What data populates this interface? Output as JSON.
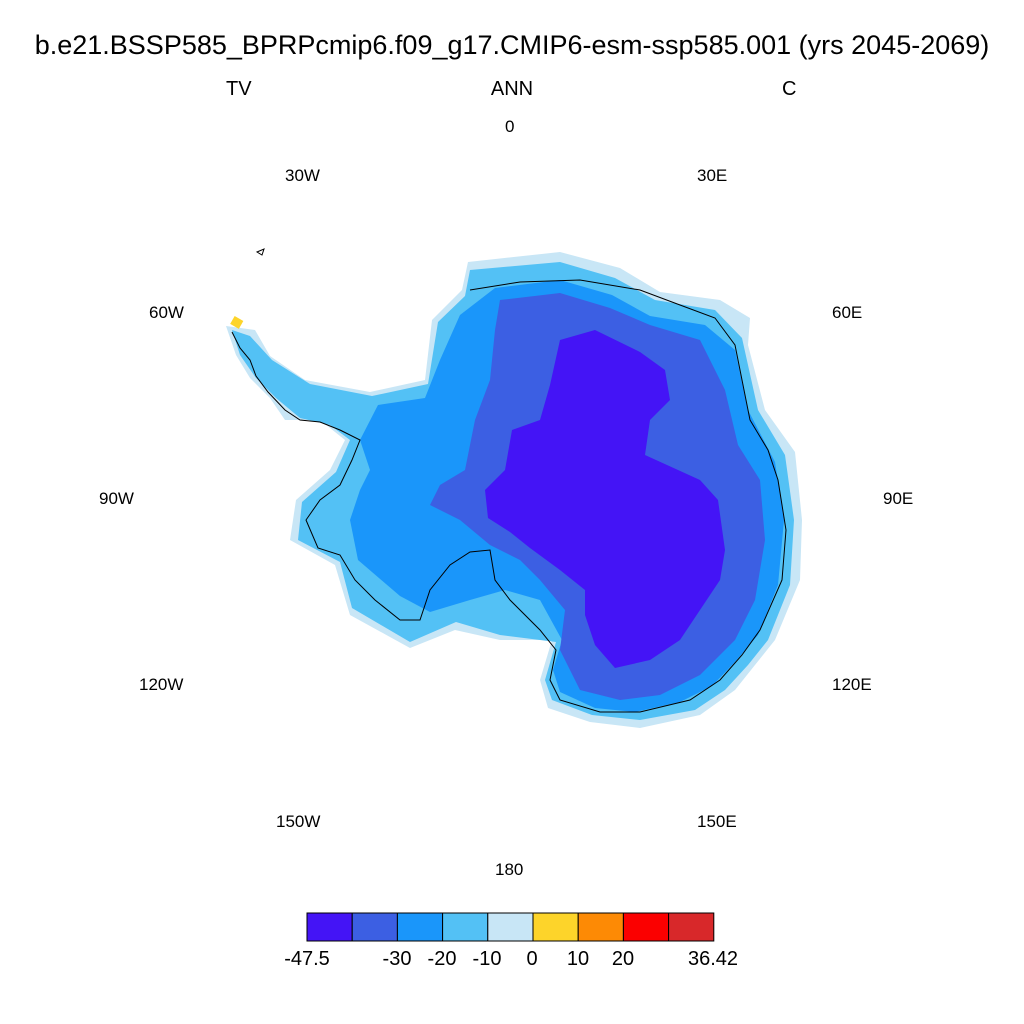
{
  "title": "b.e21.BSSP585_BPRPcmip6.f09_g17.CMIP6-esm-ssp585.001 (yrs 2045-2069)",
  "subtitle": {
    "left": "TV",
    "center": "ANN",
    "right": "C"
  },
  "longitude_labels": {
    "lon_0": "0",
    "lon_30e": "30E",
    "lon_60e": "60E",
    "lon_90e": "90E",
    "lon_120e": "120E",
    "lon_150e": "150E",
    "lon_180": "180",
    "lon_150w": "150W",
    "lon_120w": "120W",
    "lon_90w": "90W",
    "lon_60w": "60W",
    "lon_30w": "30W"
  },
  "colorbar": {
    "colors": [
      "#4414f6",
      "#3c5fe3",
      "#1a96fa",
      "#53c1f5",
      "#c8e6f6",
      "#fdd42a",
      "#fd8a05",
      "#fb0000",
      "#d8282a"
    ],
    "labels": [
      "-47.5",
      "-30",
      "-20",
      "-10",
      "0",
      "10",
      "20",
      "36.42"
    ]
  },
  "map_layers": {
    "outer_ring": "#c8e6f6",
    "band_10_0": "#53c1f5",
    "band_20_10": "#1a96fa",
    "band_30_20": "#3c5fe3",
    "interior": "#4414f6",
    "peninsula_warm_spot": "#fdd42a",
    "coastline": "#000000"
  }
}
